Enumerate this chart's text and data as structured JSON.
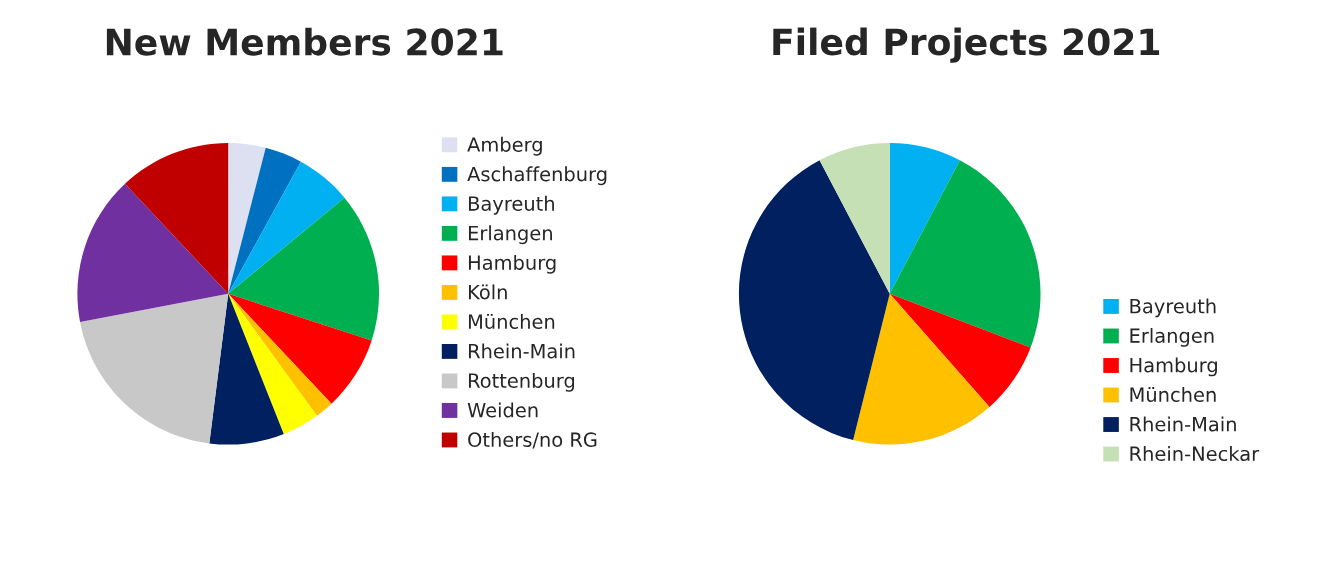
{
  "chart_data": [
    {
      "type": "pie",
      "title": "New Members 2021",
      "categories": [
        "Amberg",
        "Aschaffenburg",
        "Bayreuth",
        "Erlangen",
        "Hamburg",
        "Köln",
        "München",
        "Rhein-Main",
        "Rottenburg",
        "Weiden",
        "Others/no RG"
      ],
      "values": [
        4,
        4,
        6,
        16,
        8,
        2,
        4,
        8,
        20,
        16,
        12
      ],
      "colors": [
        "#dce0f0",
        "#0070c0",
        "#00b0f0",
        "#00b050",
        "#ff0000",
        "#ffc000",
        "#ffff00",
        "#002060",
        "#c8c8c8",
        "#7030a0",
        "#c00000"
      ],
      "legend": "right"
    },
    {
      "type": "pie",
      "title": "Filed Projects 2021",
      "categories": [
        "Bayreuth",
        "Erlangen",
        "Hamburg",
        "München",
        "Rhein-Main",
        "Rhein-Neckar"
      ],
      "values": [
        7.7,
        23.1,
        7.7,
        15.4,
        38.4,
        7.7
      ],
      "colors": [
        "#00b0f0",
        "#00b050",
        "#ff0000",
        "#ffc000",
        "#002060",
        "#c4e0b4"
      ],
      "legend": "bottom right"
    }
  ]
}
